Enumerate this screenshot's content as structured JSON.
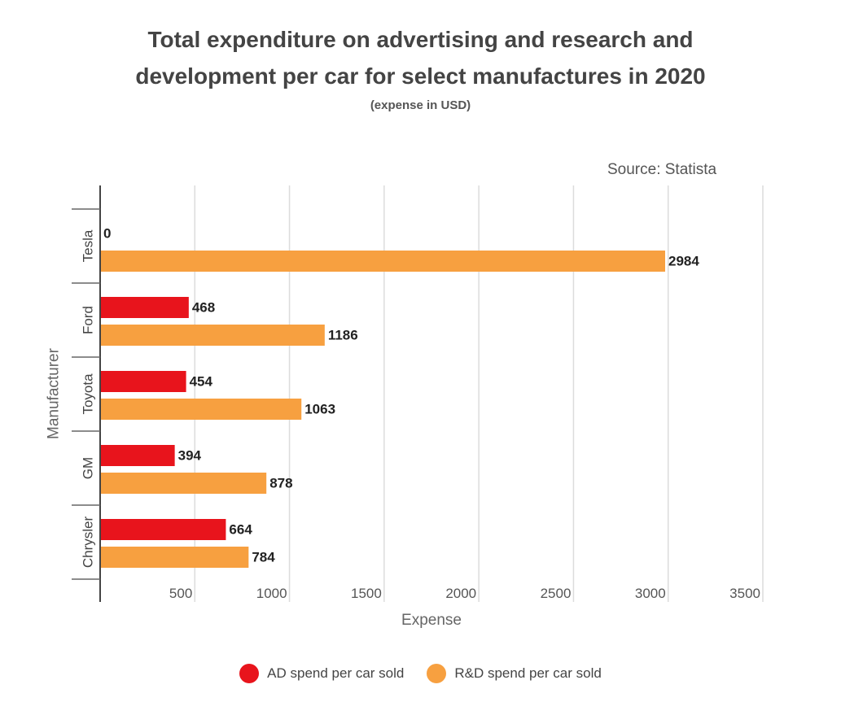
{
  "chart_data": {
    "type": "bar",
    "orientation": "horizontal",
    "title_line1": "Total expenditure on advertising and research and",
    "title_line2": "development per car for select manufactures in 2020",
    "subtitle": "(expense in USD)",
    "source": "Source: Statista",
    "xlabel": "Expense",
    "ylabel": "Manufacturer",
    "categories": [
      "Tesla",
      "Ford",
      "Toyota",
      "GM",
      "Chrysler"
    ],
    "series": [
      {
        "name": "AD spend per car sold",
        "color": "#e8141c",
        "values": [
          0,
          468,
          454,
          394,
          664
        ]
      },
      {
        "name": "R&D spend per car sold",
        "color": "#f7a040",
        "values": [
          2984,
          1186,
          1063,
          878,
          784
        ]
      }
    ],
    "xlim": [
      0,
      3500
    ],
    "xticks": [
      500,
      1000,
      1500,
      2000,
      2500,
      3000,
      3500
    ],
    "grid": true,
    "legend_position": "bottom"
  }
}
